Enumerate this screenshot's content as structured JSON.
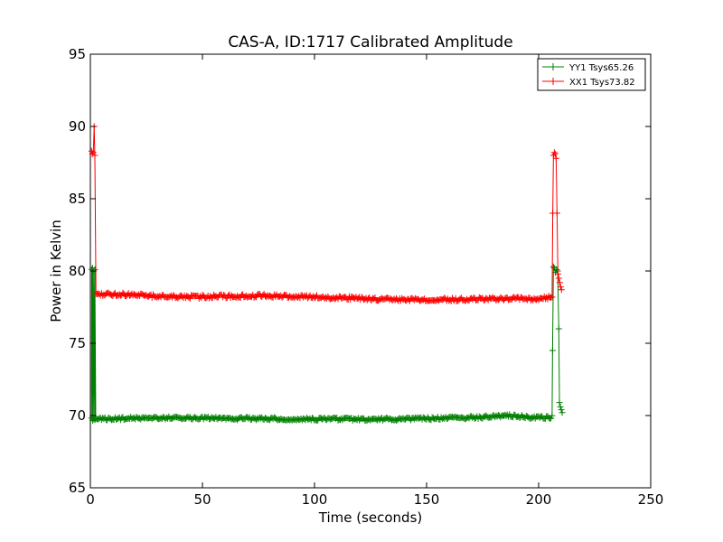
{
  "chart_data": {
    "type": "line",
    "title": "CAS-A, ID:1717 Calibrated Amplitude",
    "xlabel": "Time (seconds)",
    "ylabel": "Power in Kelvin",
    "xlim": [
      0,
      250
    ],
    "ylim": [
      65,
      95
    ],
    "xticks": [
      0,
      50,
      100,
      150,
      200,
      250
    ],
    "yticks": [
      65,
      70,
      75,
      80,
      85,
      90,
      95
    ],
    "grid": false,
    "legend_position": "top-right",
    "series": [
      {
        "name": "YY1 Tsys65.26",
        "color": "#008000",
        "marker": "+",
        "baseline": 69.8,
        "noise": 0.1,
        "x_start": 0.5,
        "x_end": 206.0,
        "step": 0.5,
        "drift": [
          [
            0,
            69.75
          ],
          [
            30,
            69.85
          ],
          [
            60,
            69.8
          ],
          [
            100,
            69.75
          ],
          [
            140,
            69.75
          ],
          [
            170,
            69.85
          ],
          [
            186,
            70.0
          ],
          [
            200,
            69.85
          ],
          [
            206,
            69.9
          ]
        ],
        "spikes": [
          [
            0.6,
            80.1
          ],
          [
            1.0,
            80.2
          ],
          [
            1.5,
            80.0
          ],
          [
            2.0,
            80.1
          ],
          [
            2.4,
            69.8
          ],
          [
            206.2,
            74.5
          ],
          [
            206.6,
            80.3
          ],
          [
            207.0,
            80.2
          ],
          [
            207.5,
            79.9
          ],
          [
            208.0,
            80.1
          ],
          [
            208.5,
            80.0
          ],
          [
            209.0,
            76.0
          ],
          [
            209.3,
            70.9
          ],
          [
            209.7,
            70.6
          ],
          [
            210.1,
            70.4
          ],
          [
            210.5,
            70.2
          ]
        ]
      },
      {
        "name": "XX1 Tsys73.82",
        "color": "#ff0000",
        "marker": "+",
        "baseline": 78.2,
        "noise": 0.12,
        "x_start": 2.5,
        "x_end": 206.0,
        "step": 0.5,
        "drift": [
          [
            0,
            78.3
          ],
          [
            10,
            78.4
          ],
          [
            40,
            78.2
          ],
          [
            80,
            78.3
          ],
          [
            100,
            78.2
          ],
          [
            140,
            78.0
          ],
          [
            170,
            78.05
          ],
          [
            200,
            78.1
          ],
          [
            206,
            78.2
          ]
        ],
        "spikes": [
          [
            0.5,
            88.3
          ],
          [
            0.9,
            88.1
          ],
          [
            1.3,
            88.2
          ],
          [
            1.7,
            90.0
          ],
          [
            2.0,
            88.0
          ],
          [
            206.3,
            84.0
          ],
          [
            206.6,
            88.0
          ],
          [
            207.0,
            88.2
          ],
          [
            207.4,
            88.1
          ],
          [
            207.8,
            87.8
          ],
          [
            208.2,
            84.0
          ],
          [
            208.6,
            79.8
          ],
          [
            209.0,
            79.5
          ],
          [
            209.4,
            79.2
          ],
          [
            209.8,
            78.9
          ],
          [
            210.2,
            78.7
          ]
        ]
      }
    ]
  }
}
